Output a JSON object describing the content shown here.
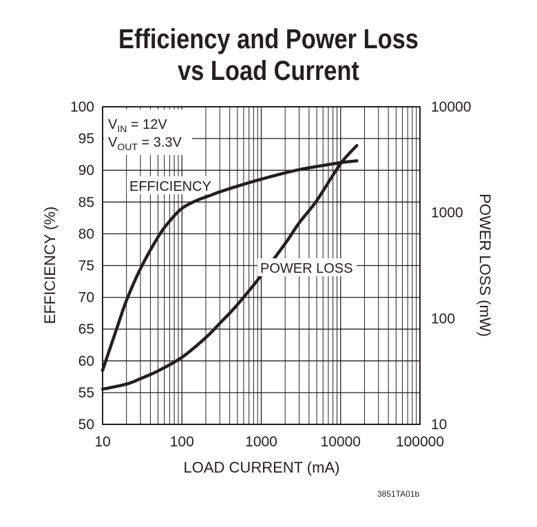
{
  "title_line1": "Efficiency and Power Loss",
  "title_line2": "vs Load Current",
  "figure_code": "3851TA01b",
  "conditions": {
    "vin_main": "V",
    "vin_sub": "IN",
    "vin_rest": " = 12V",
    "vout_main": "V",
    "vout_sub": "OUT",
    "vout_rest": " = 3.3V"
  },
  "chart_data": {
    "type": "line",
    "title": "Efficiency and Power Loss vs Load Current",
    "xlabel": "LOAD CURRENT (mA)",
    "ylabel": "EFFICIENCY (%)",
    "y2label": "POWER LOSS (mW)",
    "xscale": "log",
    "xlim": [
      10,
      100000
    ],
    "ylim": [
      50,
      100
    ],
    "y2scale": "log",
    "y2lim": [
      10,
      10000
    ],
    "grid": true,
    "x_ticks": [
      "10",
      "100",
      "1000",
      "10000",
      "100000"
    ],
    "y_ticks": [
      "50",
      "55",
      "60",
      "65",
      "70",
      "75",
      "80",
      "85",
      "90",
      "95",
      "100"
    ],
    "y2_ticks": [
      "10",
      "100",
      "1000",
      "10000"
    ],
    "series": [
      {
        "name": "EFFICIENCY",
        "axis": "left",
        "x": [
          10,
          15,
          20,
          30,
          50,
          70,
          100,
          150,
          200,
          300,
          500,
          1000,
          2000,
          3000,
          5000,
          10000,
          16000
        ],
        "y": [
          58.5,
          65,
          69.5,
          74.5,
          79.5,
          82,
          84,
          85.2,
          85.8,
          86.6,
          87.5,
          88.6,
          89.6,
          90.1,
          90.6,
          91.2,
          91.5
        ]
      },
      {
        "name": "POWER LOSS",
        "axis": "right",
        "x": [
          10,
          20,
          30,
          50,
          100,
          200,
          300,
          500,
          1000,
          2000,
          3000,
          5000,
          10000,
          16000
        ],
        "y": [
          21.5,
          24,
          27,
          32,
          43,
          66,
          90,
          135,
          255,
          510,
          800,
          1300,
          2900,
          4300
        ]
      }
    ],
    "annotations": [
      "EFFICIENCY",
      "POWER LOSS"
    ]
  }
}
